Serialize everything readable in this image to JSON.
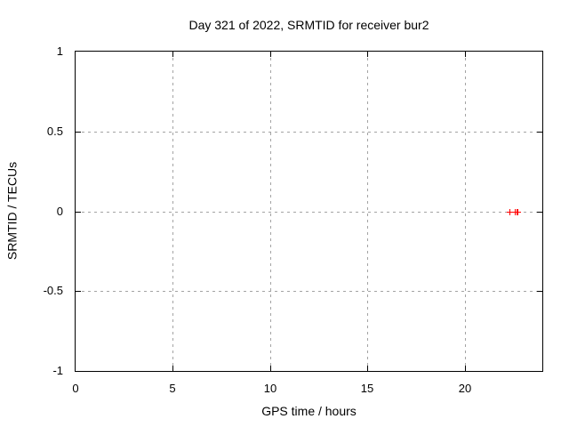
{
  "chart_data": {
    "type": "scatter",
    "title": "Day 321 of 2022, SRMTID for receiver bur2",
    "xlabel": "GPS time / hours",
    "ylabel": "SRMTID / TECUs",
    "xlim": [
      0,
      24
    ],
    "ylim": [
      -1,
      1
    ],
    "xticks": [
      {
        "value": 0,
        "label": "0"
      },
      {
        "value": 5,
        "label": "5"
      },
      {
        "value": 10,
        "label": "10"
      },
      {
        "value": 15,
        "label": "15"
      },
      {
        "value": 20,
        "label": "20"
      }
    ],
    "yticks": [
      {
        "value": -1,
        "label": "-1"
      },
      {
        "value": -0.5,
        "label": "-0.5"
      },
      {
        "value": 0,
        "label": "0"
      },
      {
        "value": 0.5,
        "label": "0.5"
      },
      {
        "value": 1,
        "label": "1"
      }
    ],
    "grid": true,
    "legend": "none",
    "series": [
      {
        "name": "SRMTID",
        "marker": "plus",
        "color": "#ff0000",
        "points": [
          {
            "x": 22.29,
            "y": 0.0
          },
          {
            "x": 22.6,
            "y": 0.0
          },
          {
            "x": 22.67,
            "y": 0.0
          },
          {
            "x": 22.74,
            "y": 0.0
          }
        ]
      }
    ],
    "colors": {
      "frame": "#000000",
      "grid": "#a3a3a3",
      "background": "#ffffff",
      "text": "#000000"
    }
  }
}
